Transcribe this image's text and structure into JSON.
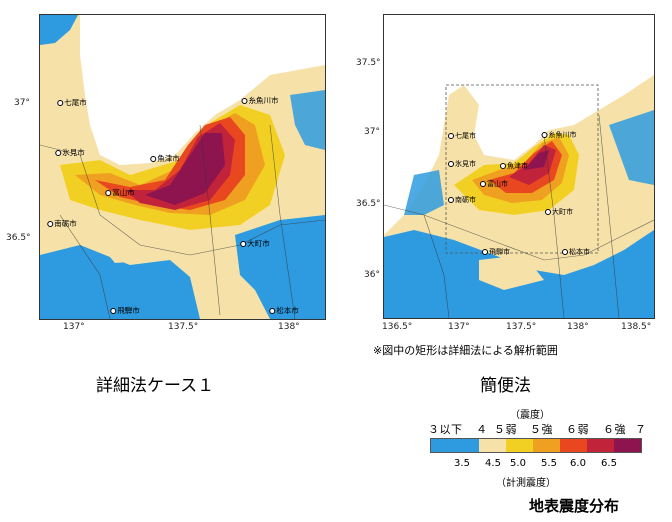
{
  "maps": {
    "left": {
      "yticks": [
        "37°",
        "36.5°"
      ],
      "xticks": [
        "137°",
        "137.5°",
        "138°"
      ],
      "cities": [
        "七尾市",
        "糸魚川市",
        "氷見市",
        "魚津市",
        "富山市",
        "南砺市",
        "大町市",
        "飛騨市",
        "松本市"
      ]
    },
    "right": {
      "yticks": [
        "37.5°",
        "37°",
        "36.5°",
        "36°"
      ],
      "xticks": [
        "136.5°",
        "137°",
        "137.5°",
        "138°",
        "138.5°"
      ],
      "cities": [
        "七尾市",
        "糸魚川市",
        "氷見市",
        "魚津市",
        "富山市",
        "南砺市",
        "大町市",
        "飛騨市",
        "松本市"
      ]
    }
  },
  "captions": {
    "left": "詳細法ケース１",
    "right": "簡便法",
    "note": "※図中の矩形は詳細法による解析範囲"
  },
  "legend": {
    "title_top": "（震度）",
    "classes": [
      "３以下",
      "４",
      "５弱",
      "５強",
      "６弱",
      "６強",
      "７"
    ],
    "values": [
      "3.5",
      "4.5",
      "5.0",
      "5.5",
      "6.0",
      "6.5"
    ],
    "title_bottom": "（計測震度）",
    "colors": [
      "#2e9be0",
      "#f6e2a8",
      "#f2d023",
      "#f0a020",
      "#e8471f",
      "#c0233a",
      "#8e1450"
    ]
  },
  "page_title": "地表震度分布"
}
